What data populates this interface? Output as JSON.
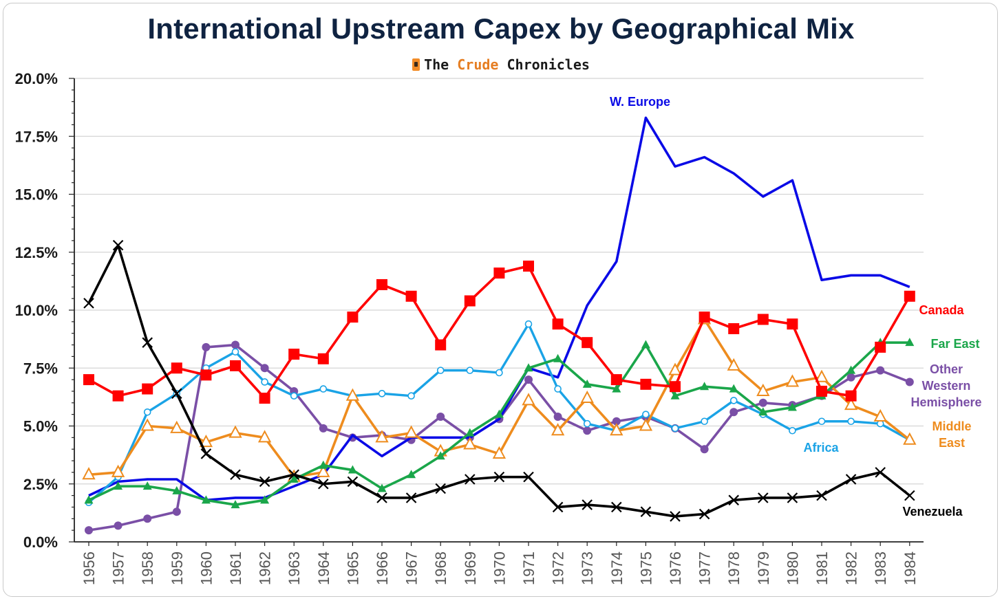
{
  "title": "International Upstream Capex by Geographical Mix",
  "brand": {
    "prefix": "The ",
    "accent": "Crude",
    "suffix": " Chronicles"
  },
  "chart_data": {
    "type": "line",
    "title": "International Upstream Capex by Geographical Mix",
    "xlabel": "",
    "ylabel": "",
    "ylim": [
      0,
      20
    ],
    "y_unit": "percent",
    "y_ticks": [
      "0.0%",
      "2.5%",
      "5.0%",
      "7.5%",
      "10.0%",
      "12.5%",
      "15.0%",
      "17.5%",
      "20.0%"
    ],
    "grid": "horizontal",
    "legend": "inline labels at line ends",
    "x": [
      "1956",
      "1957",
      "1958",
      "1959",
      "1960",
      "1961",
      "1962",
      "1963",
      "1964",
      "1965",
      "1966",
      "1967",
      "1968",
      "1969",
      "1970",
      "1971",
      "1972",
      "1973",
      "1974",
      "1975",
      "1976",
      "1977",
      "1978",
      "1979",
      "1980",
      "1981",
      "1982",
      "1983",
      "1984"
    ],
    "series": [
      {
        "name": "W. Europe",
        "color": "#0a0ae6",
        "marker": "none",
        "values": [
          2.0,
          2.6,
          2.7,
          2.7,
          1.8,
          1.9,
          1.9,
          2.4,
          2.9,
          4.6,
          3.7,
          4.5,
          4.5,
          4.5,
          5.3,
          7.5,
          7.1,
          10.2,
          12.1,
          18.3,
          16.2,
          16.6,
          15.9,
          14.9,
          15.6,
          11.3,
          11.5,
          11.5,
          11.0
        ]
      },
      {
        "name": "Canada",
        "color": "#ff0000",
        "marker": "square",
        "values": [
          7.0,
          6.3,
          6.6,
          7.5,
          7.2,
          7.6,
          6.2,
          8.1,
          7.9,
          9.7,
          11.1,
          10.6,
          8.5,
          10.4,
          11.6,
          11.9,
          9.4,
          8.6,
          7.0,
          6.8,
          6.7,
          9.7,
          9.2,
          9.6,
          9.4,
          6.5,
          6.3,
          8.4,
          10.6
        ]
      },
      {
        "name": "Far East",
        "color": "#1aa64a",
        "marker": "triangle",
        "values": [
          1.8,
          2.4,
          2.4,
          2.2,
          1.8,
          1.6,
          1.8,
          2.7,
          3.3,
          3.1,
          2.3,
          2.9,
          3.7,
          4.7,
          5.5,
          7.5,
          7.9,
          6.8,
          6.6,
          8.5,
          6.3,
          6.7,
          6.6,
          5.6,
          5.8,
          6.3,
          7.4,
          8.6,
          8.6
        ]
      },
      {
        "name": "Other Western Hemisphere",
        "color": "#7a4fa6",
        "marker": "circle",
        "values": [
          0.5,
          0.7,
          1.0,
          1.3,
          8.4,
          8.5,
          7.5,
          6.5,
          4.9,
          4.5,
          4.6,
          4.4,
          5.4,
          4.5,
          5.3,
          7.0,
          5.4,
          4.8,
          5.2,
          5.4,
          4.9,
          4.0,
          5.6,
          6.0,
          5.9,
          6.3,
          7.1,
          7.4,
          6.9
        ]
      },
      {
        "name": "Middle East",
        "color": "#ee8c1e",
        "marker": "triangle-open",
        "values": [
          2.9,
          3.0,
          5.0,
          4.9,
          4.3,
          4.7,
          4.5,
          2.8,
          3.0,
          6.3,
          4.5,
          4.7,
          3.9,
          4.2,
          3.8,
          6.1,
          4.8,
          6.2,
          4.8,
          5.0,
          7.4,
          9.6,
          7.6,
          6.5,
          6.9,
          7.1,
          5.9,
          5.4,
          4.4
        ]
      },
      {
        "name": "Africa",
        "color": "#1aa3e6",
        "marker": "circle-open",
        "values": [
          1.7,
          2.8,
          5.6,
          6.4,
          7.5,
          8.2,
          6.9,
          6.3,
          6.6,
          6.3,
          6.4,
          6.3,
          7.4,
          7.4,
          7.3,
          9.4,
          6.6,
          5.1,
          4.8,
          5.5,
          4.9,
          5.2,
          6.1,
          5.5,
          4.8,
          5.2,
          5.2,
          5.1,
          4.4
        ]
      },
      {
        "name": "Venezuela",
        "color": "#000000",
        "marker": "x",
        "values": [
          10.3,
          12.8,
          8.6,
          6.4,
          3.8,
          2.9,
          2.6,
          2.9,
          2.5,
          2.6,
          1.9,
          1.9,
          2.3,
          2.7,
          2.8,
          2.8,
          1.5,
          1.6,
          1.5,
          1.3,
          1.1,
          1.2,
          1.8,
          1.9,
          1.9,
          2.0,
          2.7,
          3.0,
          2.0
        ]
      }
    ],
    "annotations": [
      {
        "text": "W. Europe",
        "color": "#0a0ae6"
      },
      {
        "text": "Canada",
        "color": "#ff0000"
      },
      {
        "text": "Far East",
        "color": "#1aa64a"
      },
      {
        "text": "Other",
        "color": "#7a4fa6"
      },
      {
        "text": "Western",
        "color": "#7a4fa6"
      },
      {
        "text": "Hemisphere",
        "color": "#7a4fa6"
      },
      {
        "text": "Middle",
        "color": "#ee8c1e"
      },
      {
        "text": "East",
        "color": "#ee8c1e"
      },
      {
        "text": "Africa",
        "color": "#1aa3e6"
      },
      {
        "text": "Venezuela",
        "color": "#000000"
      }
    ]
  }
}
